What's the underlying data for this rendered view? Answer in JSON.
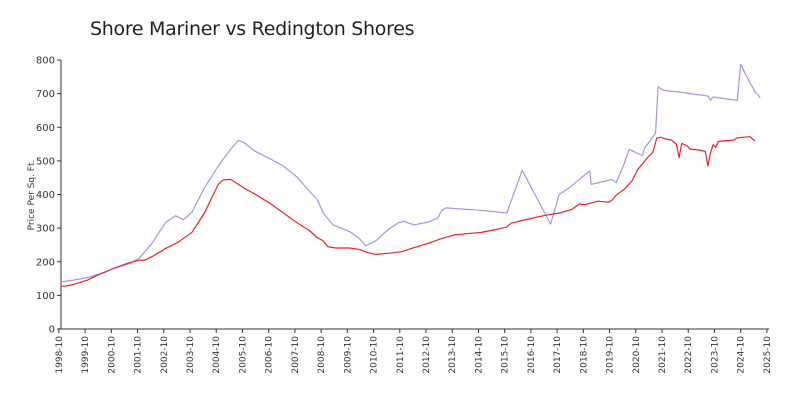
{
  "chart_data": {
    "type": "line",
    "title": "Shore Mariner vs Redington Shores",
    "xlabel": "",
    "ylabel": "Price Per Sq. Ft.",
    "ylim": [
      0,
      800
    ],
    "yticks": [
      0,
      100,
      200,
      300,
      400,
      500,
      600,
      700,
      800
    ],
    "xticks": [
      "1998-10",
      "1999-10",
      "2000-10",
      "2001-10",
      "2002-10",
      "2003-10",
      "2004-10",
      "2005-10",
      "2006-10",
      "2007-10",
      "2008-10",
      "2009-10",
      "2010-10",
      "2011-10",
      "2012-10",
      "2013-10",
      "2014-10",
      "2015-10",
      "2016-10",
      "2017-10",
      "2018-10",
      "2019-10",
      "2020-10",
      "2021-10",
      "2022-10",
      "2023-10",
      "2024-10",
      "2025-10"
    ],
    "grid": false,
    "series": [
      {
        "color": "#9999ee",
        "points": [
          [
            1998.83,
            140
          ],
          [
            1999.3,
            145
          ],
          [
            1999.83,
            153
          ],
          [
            2000.5,
            168
          ],
          [
            2000.83,
            180
          ],
          [
            2001.5,
            196
          ],
          [
            2001.83,
            212
          ],
          [
            2002.3,
            255
          ],
          [
            2002.83,
            318
          ],
          [
            2003.2,
            337
          ],
          [
            2003.5,
            325
          ],
          [
            2003.83,
            348
          ],
          [
            2004.3,
            420
          ],
          [
            2004.83,
            485
          ],
          [
            2005.3,
            535
          ],
          [
            2005.6,
            561
          ],
          [
            2005.8,
            555
          ],
          [
            2006.2,
            530
          ],
          [
            2006.83,
            505
          ],
          [
            2007.3,
            485
          ],
          [
            2007.83,
            452
          ],
          [
            2008.3,
            410
          ],
          [
            2008.6,
            385
          ],
          [
            2008.83,
            345
          ],
          [
            2009.2,
            310
          ],
          [
            2009.83,
            290
          ],
          [
            2010.2,
            270
          ],
          [
            2010.45,
            247
          ],
          [
            2010.83,
            262
          ],
          [
            2011.3,
            295
          ],
          [
            2011.7,
            316
          ],
          [
            2011.9,
            320
          ],
          [
            2012.3,
            310
          ],
          [
            2012.83,
            318
          ],
          [
            2013.2,
            330
          ],
          [
            2013.35,
            352
          ],
          [
            2013.5,
            360
          ],
          [
            2014.83,
            353
          ],
          [
            2015.83,
            345
          ],
          [
            2016.42,
            472
          ],
          [
            2017.5,
            312
          ],
          [
            2017.83,
            400
          ],
          [
            2018.3,
            425
          ],
          [
            2018.83,
            460
          ],
          [
            2019.0,
            470
          ],
          [
            2019.05,
            430
          ],
          [
            2019.6,
            440
          ],
          [
            2019.83,
            445
          ],
          [
            2020.0,
            435
          ],
          [
            2020.3,
            490
          ],
          [
            2020.5,
            535
          ],
          [
            2020.83,
            522
          ],
          [
            2021.0,
            516
          ],
          [
            2021.1,
            540
          ],
          [
            2021.3,
            560
          ],
          [
            2021.5,
            582
          ],
          [
            2021.6,
            720
          ],
          [
            2021.8,
            710
          ],
          [
            2022.0,
            708
          ],
          [
            2022.1,
            707
          ],
          [
            2022.3,
            706
          ],
          [
            2022.83,
            700
          ],
          [
            2023.3,
            695
          ],
          [
            2023.5,
            693
          ],
          [
            2023.6,
            680
          ],
          [
            2023.7,
            690
          ],
          [
            2024.5,
            681
          ],
          [
            2024.62,
            680
          ],
          [
            2024.75,
            787
          ],
          [
            2025.0,
            748
          ],
          [
            2025.3,
            705
          ],
          [
            2025.5,
            688
          ]
        ]
      },
      {
        "color": "#ee2222",
        "points": [
          [
            1998.83,
            127
          ],
          [
            1999.0,
            128
          ],
          [
            1999.3,
            132
          ],
          [
            1999.83,
            145
          ],
          [
            2000.3,
            163
          ],
          [
            2000.83,
            180
          ],
          [
            2001.3,
            194
          ],
          [
            2001.83,
            205
          ],
          [
            2002.0,
            204
          ],
          [
            2002.3,
            215
          ],
          [
            2002.83,
            240
          ],
          [
            2003.3,
            258
          ],
          [
            2003.83,
            288
          ],
          [
            2004.3,
            345
          ],
          [
            2004.83,
            430
          ],
          [
            2005.0,
            443
          ],
          [
            2005.3,
            445
          ],
          [
            2005.83,
            418
          ],
          [
            2006.3,
            398
          ],
          [
            2006.83,
            372
          ],
          [
            2007.3,
            346
          ],
          [
            2007.83,
            316
          ],
          [
            2008.3,
            293
          ],
          [
            2008.6,
            272
          ],
          [
            2008.83,
            262
          ],
          [
            2009.0,
            245
          ],
          [
            2009.3,
            241
          ],
          [
            2009.83,
            241
          ],
          [
            2010.2,
            237
          ],
          [
            2010.5,
            228
          ],
          [
            2010.83,
            222
          ],
          [
            2011.3,
            225
          ],
          [
            2011.83,
            230
          ],
          [
            2012.3,
            242
          ],
          [
            2012.83,
            255
          ],
          [
            2013.3,
            268
          ],
          [
            2013.83,
            280
          ],
          [
            2014.5,
            285
          ],
          [
            2014.83,
            287
          ],
          [
            2015.5,
            297
          ],
          [
            2015.83,
            303
          ],
          [
            2016.0,
            315
          ],
          [
            2016.83,
            330
          ],
          [
            2017.3,
            338
          ],
          [
            2017.83,
            345
          ],
          [
            2018.3,
            355
          ],
          [
            2018.6,
            372
          ],
          [
            2018.83,
            370
          ],
          [
            2019.3,
            380
          ],
          [
            2019.7,
            377
          ],
          [
            2019.83,
            382
          ],
          [
            2020.0,
            398
          ],
          [
            2020.3,
            415
          ],
          [
            2020.6,
            440
          ],
          [
            2020.83,
            475
          ],
          [
            2021.0,
            490
          ],
          [
            2021.2,
            510
          ],
          [
            2021.4,
            525
          ],
          [
            2021.55,
            568
          ],
          [
            2021.7,
            570
          ],
          [
            2021.9,
            565
          ],
          [
            2022.1,
            562
          ],
          [
            2022.3,
            550
          ],
          [
            2022.4,
            510
          ],
          [
            2022.5,
            552
          ],
          [
            2022.7,
            545
          ],
          [
            2022.83,
            535
          ],
          [
            2023.2,
            532
          ],
          [
            2023.4,
            528
          ],
          [
            2023.5,
            485
          ],
          [
            2023.6,
            525
          ],
          [
            2023.7,
            548
          ],
          [
            2023.8,
            540
          ],
          [
            2023.9,
            558
          ],
          [
            2024.5,
            562
          ],
          [
            2024.6,
            568
          ],
          [
            2024.83,
            570
          ],
          [
            2025.1,
            572
          ],
          [
            2025.2,
            565
          ],
          [
            2025.3,
            560
          ]
        ]
      }
    ]
  }
}
